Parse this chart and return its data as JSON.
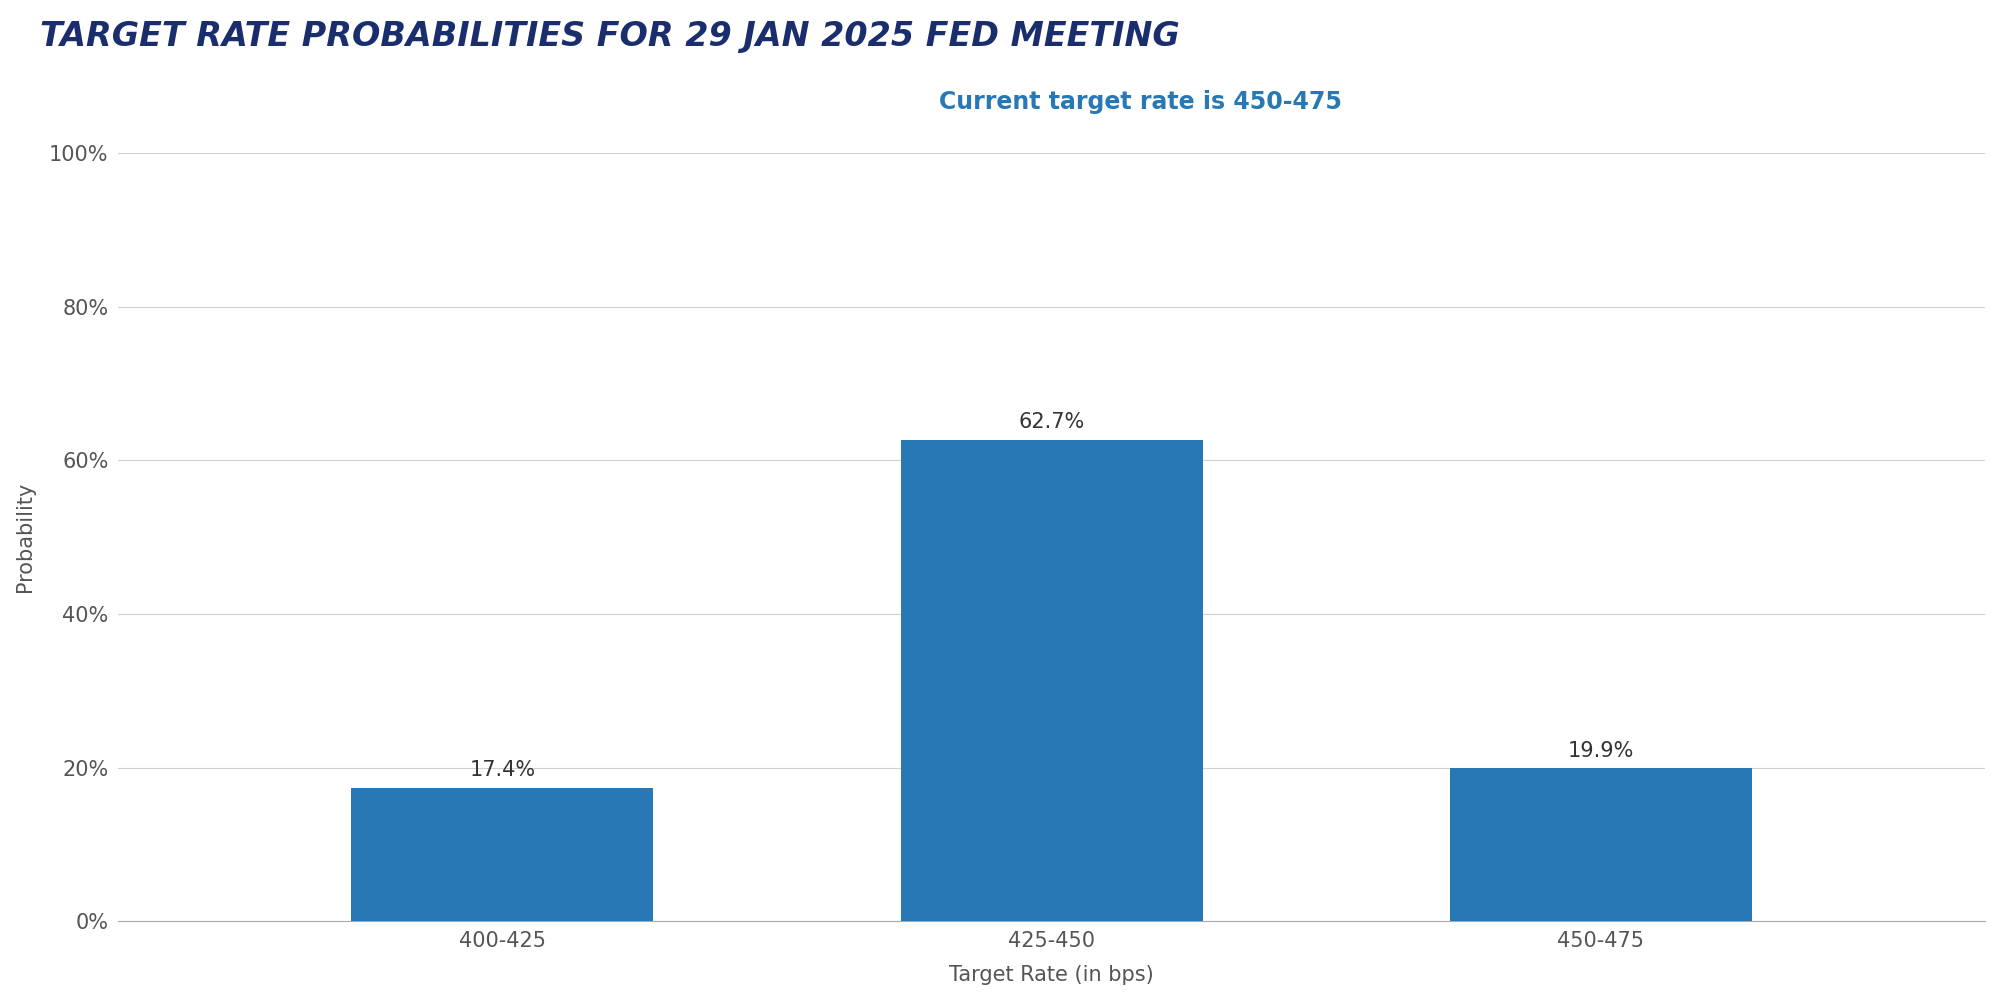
{
  "title": "TARGET RATE PROBABILITIES FOR 29 JAN 2025 FED MEETING",
  "subtitle": "Current target rate is 450-475",
  "categories": [
    "400-425",
    "425-450",
    "450-475"
  ],
  "values": [
    17.4,
    62.7,
    19.9
  ],
  "bar_color": "#2878b5",
  "title_color": "#1a2e6e",
  "subtitle_color": "#2878b5",
  "xlabel": "Target Rate (in bps)",
  "ylabel": "Probability",
  "ylim": [
    0,
    100
  ],
  "yticks": [
    0,
    20,
    40,
    60,
    80,
    100
  ],
  "background_color": "#ffffff",
  "title_fontsize": 24,
  "subtitle_fontsize": 17,
  "label_fontsize": 15,
  "tick_fontsize": 15,
  "annotation_fontsize": 15,
  "bar_width": 0.55
}
